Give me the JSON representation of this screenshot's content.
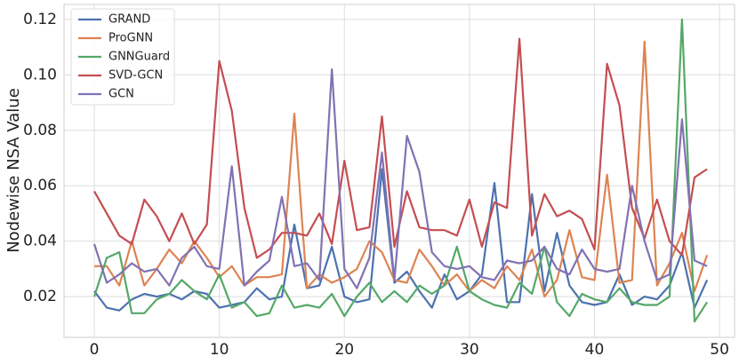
{
  "chart_data": {
    "type": "line",
    "ylabel": "Nodewise NSA Value",
    "x": [
      0,
      1,
      2,
      3,
      4,
      5,
      6,
      7,
      8,
      9,
      10,
      11,
      12,
      13,
      14,
      15,
      16,
      17,
      18,
      19,
      20,
      21,
      22,
      23,
      24,
      25,
      26,
      27,
      28,
      29,
      30,
      31,
      32,
      33,
      34,
      35,
      36,
      37,
      38,
      39,
      40,
      41,
      42,
      43,
      44,
      45,
      46,
      47,
      48,
      49
    ],
    "xlim": [
      -2.42,
      51.2
    ],
    "xticks": [
      0,
      10,
      20,
      30,
      40,
      50
    ],
    "ylim": [
      0.0053,
      0.1254
    ],
    "yticks": [
      0.02,
      0.04,
      0.06,
      0.08,
      {
        "value": 0.1,
        "label": "0.10"
      },
      0.12
    ],
    "grid": true,
    "legend": "upper-left",
    "series": [
      {
        "name": "GRAND",
        "color": "#4c72b0",
        "values": [
          0.022,
          0.016,
          0.015,
          0.019,
          0.021,
          0.02,
          0.021,
          0.019,
          0.022,
          0.021,
          0.016,
          0.017,
          0.018,
          0.023,
          0.019,
          0.02,
          0.046,
          0.023,
          0.024,
          0.038,
          0.02,
          0.018,
          0.019,
          0.066,
          0.025,
          0.029,
          0.022,
          0.016,
          0.028,
          0.019,
          0.022,
          0.028,
          0.061,
          0.018,
          0.018,
          0.057,
          0.022,
          0.043,
          0.024,
          0.018,
          0.017,
          0.018,
          0.028,
          0.017,
          0.02,
          0.019,
          0.024,
          0.036,
          0.016,
          0.026
        ]
      },
      {
        "name": "ProGNN",
        "color": "#dd8452",
        "values": [
          0.031,
          0.031,
          0.024,
          0.04,
          0.024,
          0.03,
          0.037,
          0.032,
          0.04,
          0.034,
          0.027,
          0.031,
          0.024,
          0.027,
          0.027,
          0.028,
          0.086,
          0.023,
          0.028,
          0.025,
          0.027,
          0.03,
          0.04,
          0.036,
          0.026,
          0.025,
          0.037,
          0.031,
          0.024,
          0.028,
          0.022,
          0.026,
          0.023,
          0.031,
          0.026,
          0.037,
          0.02,
          0.026,
          0.044,
          0.027,
          0.026,
          0.064,
          0.025,
          0.026,
          0.112,
          0.024,
          0.032,
          0.043,
          0.022,
          0.035
        ]
      },
      {
        "name": "GNNGuard",
        "color": "#55a868",
        "values": [
          0.02,
          0.034,
          0.036,
          0.014,
          0.014,
          0.019,
          0.021,
          0.026,
          0.022,
          0.019,
          0.028,
          0.016,
          0.018,
          0.013,
          0.014,
          0.024,
          0.016,
          0.017,
          0.016,
          0.021,
          0.013,
          0.02,
          0.025,
          0.018,
          0.022,
          0.018,
          0.024,
          0.021,
          0.024,
          0.038,
          0.022,
          0.019,
          0.017,
          0.016,
          0.025,
          0.021,
          0.038,
          0.018,
          0.013,
          0.021,
          0.019,
          0.018,
          0.023,
          0.018,
          0.017,
          0.017,
          0.02,
          0.12,
          0.011,
          0.018
        ]
      },
      {
        "name": "SVD-GCN",
        "color": "#c44e52",
        "values": [
          0.058,
          0.05,
          0.042,
          0.039,
          0.055,
          0.049,
          0.04,
          0.05,
          0.039,
          0.046,
          0.105,
          0.087,
          0.052,
          0.034,
          0.037,
          0.043,
          0.043,
          0.042,
          0.05,
          0.039,
          0.069,
          0.044,
          0.045,
          0.085,
          0.038,
          0.058,
          0.045,
          0.044,
          0.044,
          0.042,
          0.055,
          0.038,
          0.054,
          0.052,
          0.113,
          0.042,
          0.057,
          0.049,
          0.051,
          0.048,
          0.037,
          0.104,
          0.089,
          0.052,
          0.041,
          0.055,
          0.04,
          0.035,
          0.063,
          0.066
        ]
      },
      {
        "name": "GCN",
        "color": "#8172b3",
        "values": [
          0.039,
          0.025,
          0.028,
          0.032,
          0.029,
          0.03,
          0.024,
          0.034,
          0.038,
          0.031,
          0.03,
          0.067,
          0.024,
          0.029,
          0.033,
          0.056,
          0.031,
          0.032,
          0.026,
          0.102,
          0.03,
          0.023,
          0.034,
          0.072,
          0.026,
          0.078,
          0.065,
          0.036,
          0.031,
          0.03,
          0.031,
          0.027,
          0.026,
          0.033,
          0.032,
          0.033,
          0.038,
          0.03,
          0.028,
          0.037,
          0.03,
          0.029,
          0.03,
          0.06,
          0.04,
          0.026,
          0.028,
          0.084,
          0.033,
          0.031
        ]
      }
    ]
  }
}
